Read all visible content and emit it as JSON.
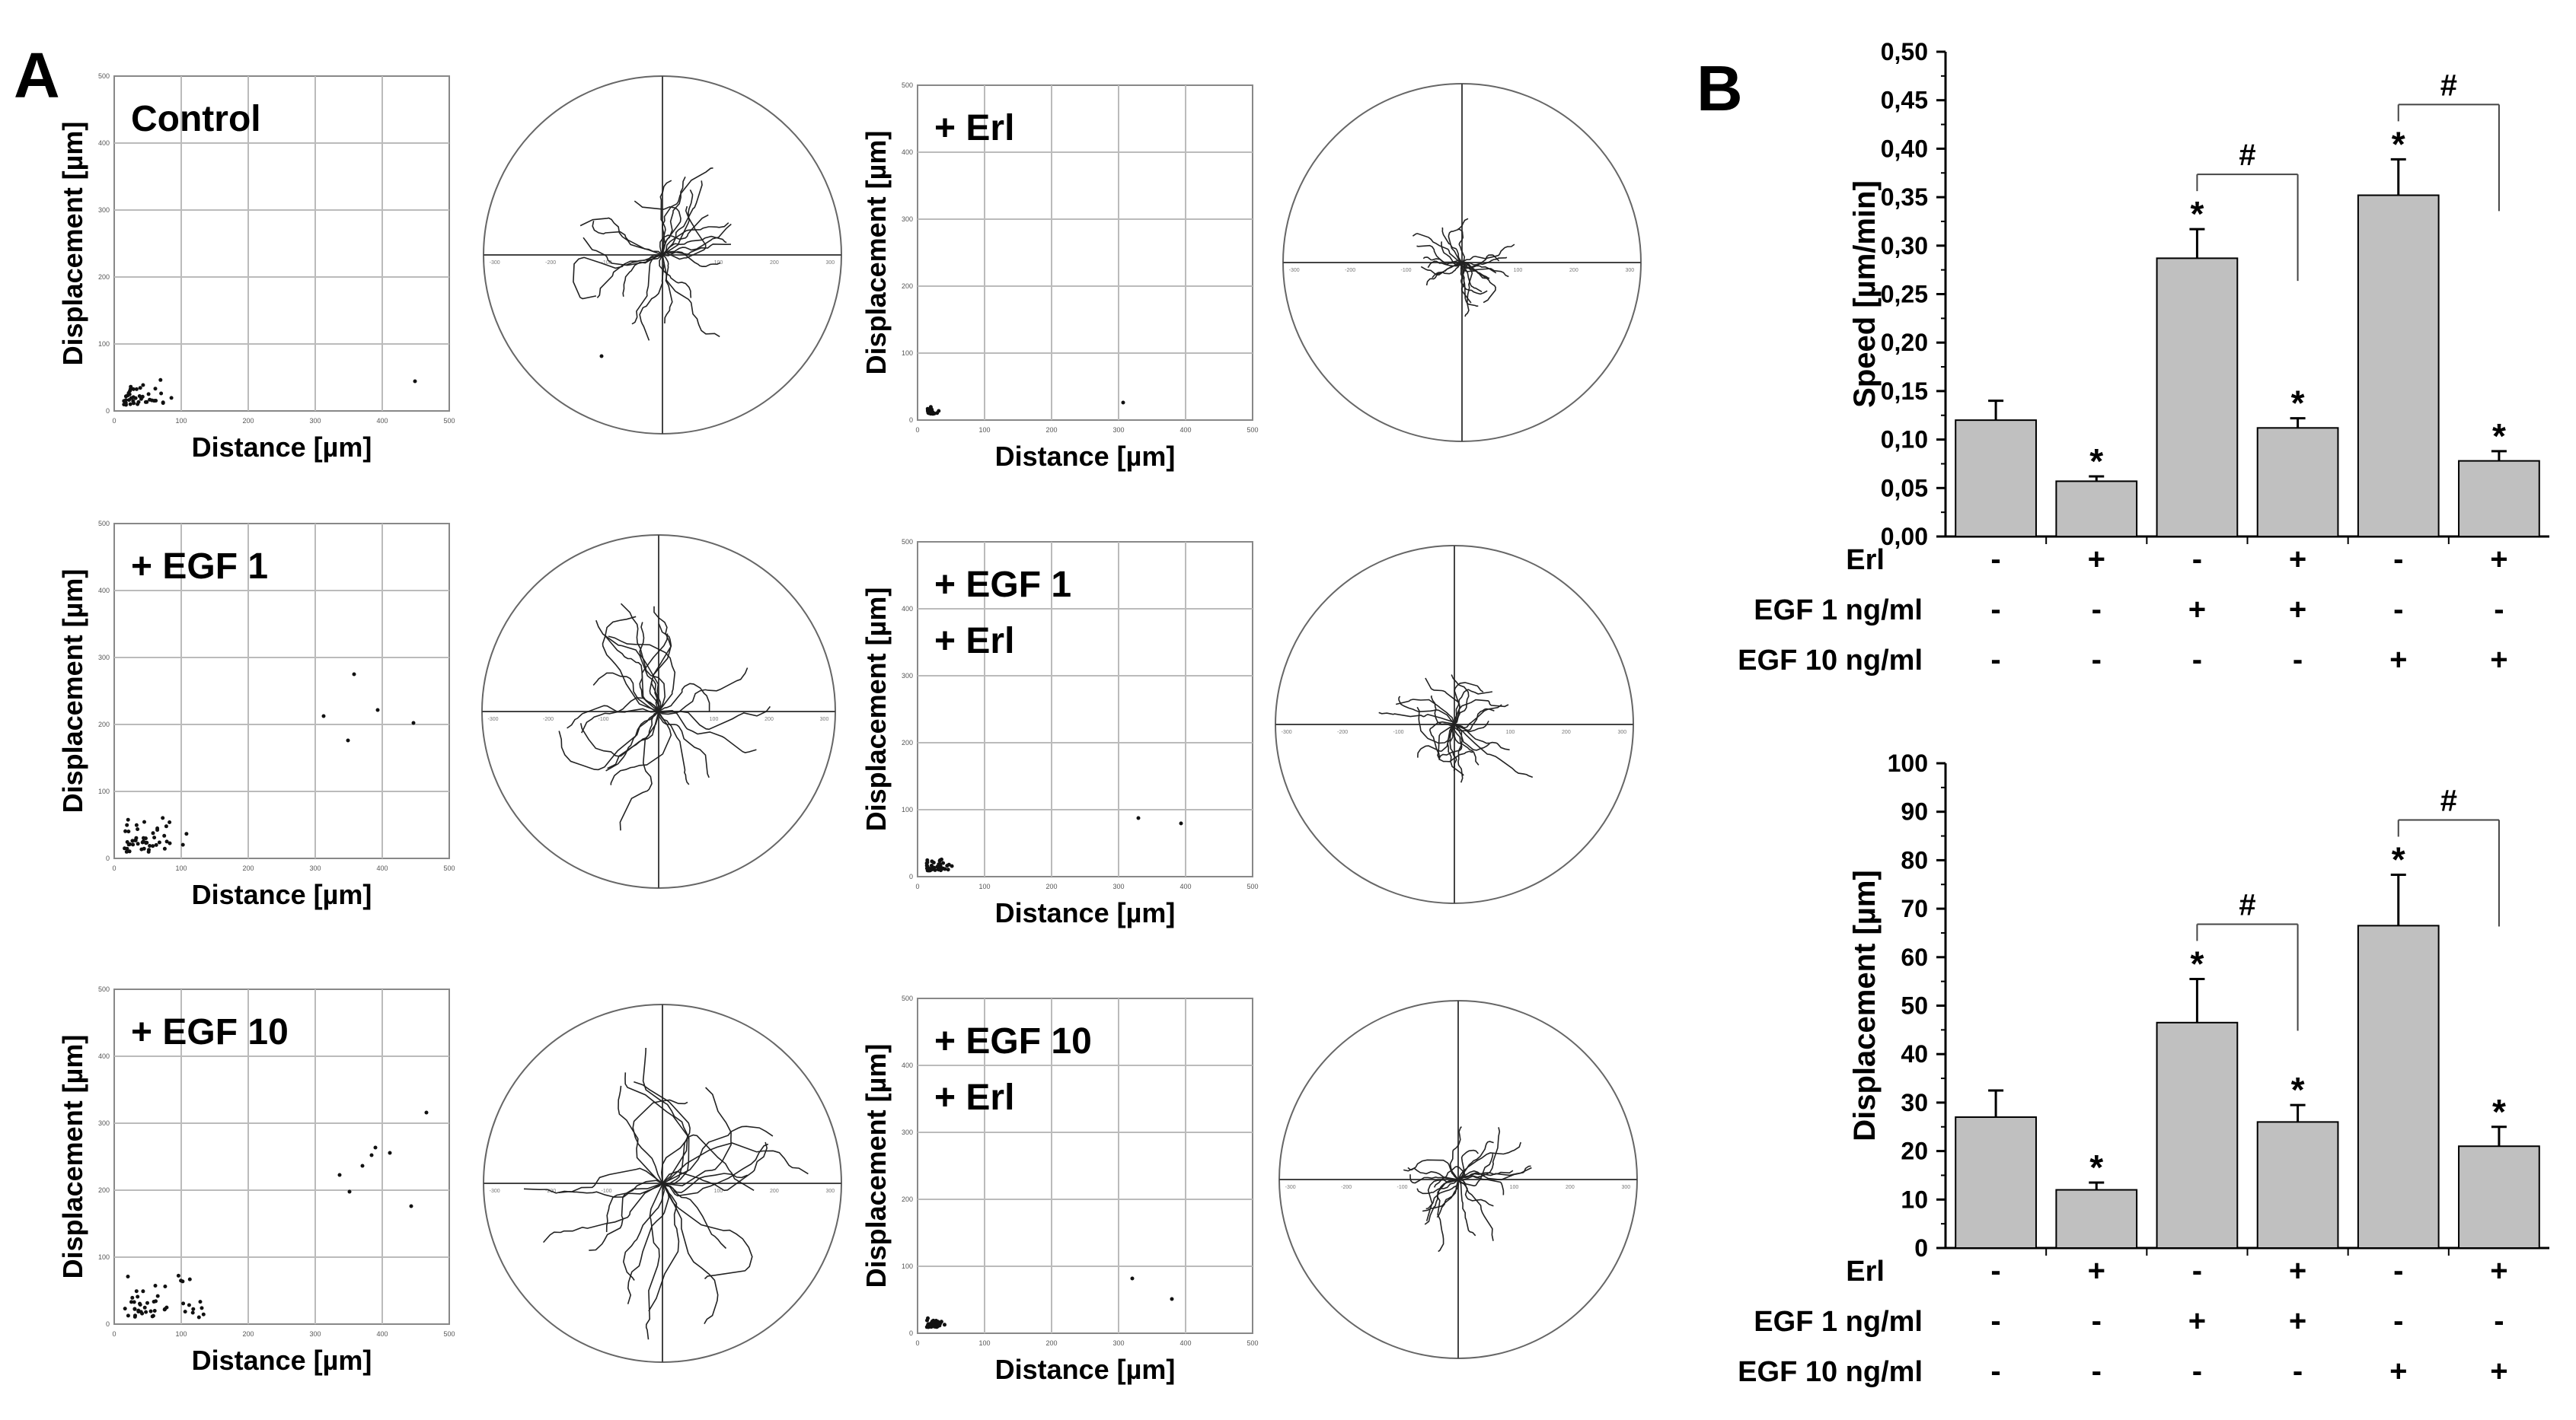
{
  "panel_letters": {
    "a": "A",
    "b": "B"
  },
  "scatter_axis": {
    "xlabel": "Distance [µm]",
    "ylabel": "Displacement [µm]",
    "ticks": [
      "0",
      "100",
      "200",
      "300",
      "400",
      "500"
    ]
  },
  "spider_ticks": {
    "pos": [
      "100",
      "200",
      "300"
    ],
    "neg": [
      "-100",
      "-200",
      "-300"
    ]
  },
  "conditions": [
    {
      "label_lines": [
        "Control"
      ]
    },
    {
      "label_lines": [
        "+ Erl"
      ]
    },
    {
      "label_lines": [
        "+ EGF 1"
      ]
    },
    {
      "label_lines": [
        "+ EGF 1",
        "+ Erl"
      ]
    },
    {
      "label_lines": [
        "+ EGF 10"
      ]
    },
    {
      "label_lines": [
        "+ EGF 10",
        "+ Erl"
      ]
    }
  ],
  "treatment_table": {
    "rows": [
      {
        "label": "Erl",
        "values": [
          "-",
          "+",
          "-",
          "+",
          "-",
          "+"
        ]
      },
      {
        "label": "EGF 1 ng/ml",
        "values": [
          "-",
          "-",
          "+",
          "+",
          "-",
          "-"
        ]
      },
      {
        "label": "EGF 10 ng/ml",
        "values": [
          "-",
          "-",
          "-",
          "-",
          "+",
          "+"
        ]
      }
    ]
  },
  "chart_data": [
    {
      "type": "bar",
      "ylabel": "Speed [µm/min]",
      "ylim": [
        0,
        0.5
      ],
      "y_ticks": [
        "0,00",
        "0,05",
        "0,10",
        "0,15",
        "0,20",
        "0,25",
        "0,30",
        "0,35",
        "0,40",
        "0,45",
        "0,50"
      ],
      "categories": [
        "Control",
        "Erl",
        "EGF 1",
        "EGF 1 + Erl",
        "EGF 10",
        "EGF 10 + Erl"
      ],
      "values": [
        0.12,
        0.057,
        0.287,
        0.112,
        0.352,
        0.078
      ],
      "errors": [
        0.02,
        0.005,
        0.03,
        0.01,
        0.037,
        0.01
      ],
      "significance": [
        "",
        "*",
        "*",
        "*",
        "*",
        "*"
      ],
      "comparison_symbol": "#",
      "comparisons": [
        [
          2,
          3
        ],
        [
          4,
          5
        ]
      ]
    },
    {
      "type": "bar",
      "ylabel": "Displacement [µm]",
      "ylim": [
        0,
        100
      ],
      "y_ticks": [
        "0",
        "10",
        "20",
        "30",
        "40",
        "50",
        "60",
        "70",
        "80",
        "90",
        "100"
      ],
      "categories": [
        "Control",
        "Erl",
        "EGF 1",
        "EGF 1 + Erl",
        "EGF 10",
        "EGF 10 + Erl"
      ],
      "values": [
        27,
        12,
        46.5,
        26,
        66.5,
        21
      ],
      "errors": [
        5.5,
        1.5,
        9,
        3.5,
        10.5,
        4
      ],
      "significance": [
        "",
        "*",
        "*",
        "*",
        "*",
        "*"
      ],
      "comparison_symbol": "#",
      "comparisons": [
        [
          2,
          3
        ],
        [
          4,
          5
        ]
      ]
    }
  ]
}
